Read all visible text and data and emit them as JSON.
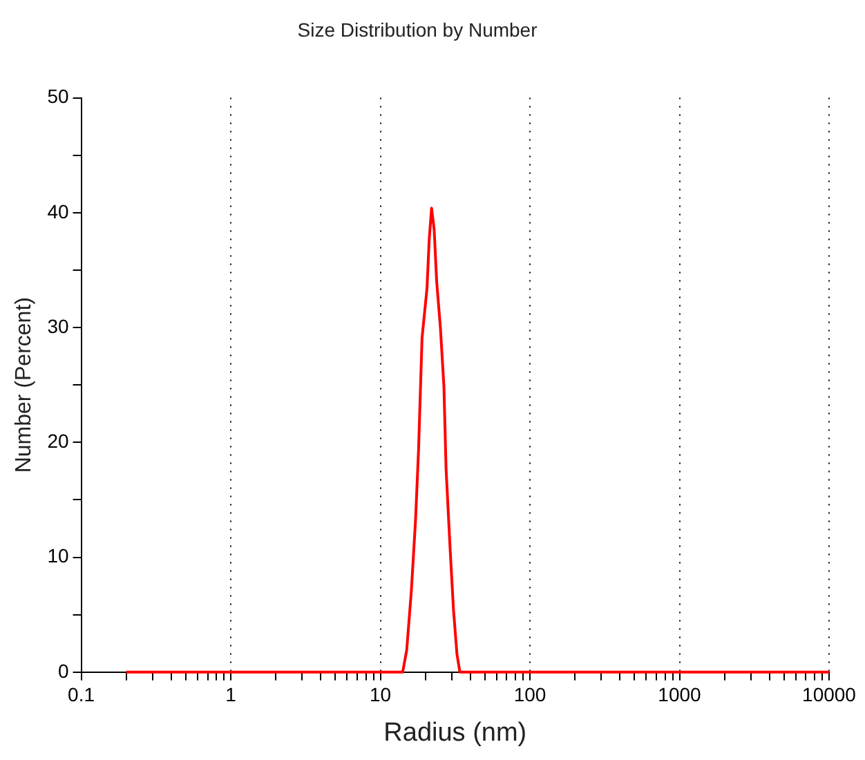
{
  "chart_data": {
    "type": "line",
    "title": "Size Distribution by Number",
    "xlabel": "Radius (nm)",
    "ylabel": "Number (Percent)",
    "log": "x",
    "grid": "x",
    "marker": "none",
    "line_style": "solid",
    "xlim": [
      0.1,
      10000
    ],
    "xticks": [
      0.1,
      {
        "value": 0.2,
        "label": null
      },
      {
        "value": 0.3,
        "label": null
      },
      {
        "value": 0.4,
        "label": null
      },
      {
        "value": 0.5,
        "label": null
      },
      {
        "value": 0.6,
        "label": null
      },
      {
        "value": 0.7,
        "label": null
      },
      {
        "value": 0.8,
        "label": null
      },
      {
        "value": 0.9,
        "label": null
      },
      1,
      {
        "value": 2,
        "label": null
      },
      {
        "value": 3,
        "label": null
      },
      {
        "value": 4,
        "label": null
      },
      {
        "value": 5,
        "label": null
      },
      {
        "value": 6,
        "label": null
      },
      {
        "value": 7,
        "label": null
      },
      {
        "value": 8,
        "label": null
      },
      {
        "value": 9,
        "label": null
      },
      10,
      {
        "value": 20,
        "label": null
      },
      {
        "value": 30,
        "label": null
      },
      {
        "value": 40,
        "label": null
      },
      {
        "value": 50,
        "label": null
      },
      {
        "value": 60,
        "label": null
      },
      {
        "value": 70,
        "label": null
      },
      {
        "value": 80,
        "label": null
      },
      {
        "value": 90,
        "label": null
      },
      100,
      {
        "value": 200,
        "label": null
      },
      {
        "value": 300,
        "label": null
      },
      {
        "value": 400,
        "label": null
      },
      {
        "value": 500,
        "label": null
      },
      {
        "value": 600,
        "label": null
      },
      {
        "value": 700,
        "label": null
      },
      {
        "value": 800,
        "label": null
      },
      {
        "value": 900,
        "label": null
      },
      1000,
      {
        "value": 2000,
        "label": null
      },
      {
        "value": 3000,
        "label": null
      },
      {
        "value": 4000,
        "label": null
      },
      {
        "value": 5000,
        "label": null
      },
      {
        "value": 6000,
        "label": null
      },
      {
        "value": 7000,
        "label": null
      },
      {
        "value": 8000,
        "label": null
      },
      {
        "value": 9000,
        "label": null
      },
      10000
    ],
    "ylim": [
      0,
      50
    ],
    "yticks": [
      0,
      {
        "value": 5,
        "label": null
      },
      10,
      {
        "value": 15,
        "label": null
      },
      20,
      {
        "value": 25,
        "label": null
      },
      30,
      {
        "value": 35,
        "label": null
      },
      40,
      {
        "value": 45,
        "label": null
      },
      50
    ],
    "series": [
      {
        "color": "#ff0000",
        "x": [
          0.2,
          14.1,
          15.0,
          16.1,
          17.2,
          18.0,
          19.0,
          20.5,
          21.2,
          22.0,
          22.9,
          23.8,
          25.2,
          26.6,
          27.5,
          29.2,
          30.8,
          32.5,
          34.0,
          10000
        ],
        "values": [
          0,
          0,
          1.9,
          7,
          13.3,
          19.3,
          29.1,
          33.4,
          37.6,
          40.4,
          38.5,
          34,
          30,
          24.9,
          17.7,
          11,
          5.5,
          1.6,
          0,
          0
        ]
      }
    ]
  }
}
